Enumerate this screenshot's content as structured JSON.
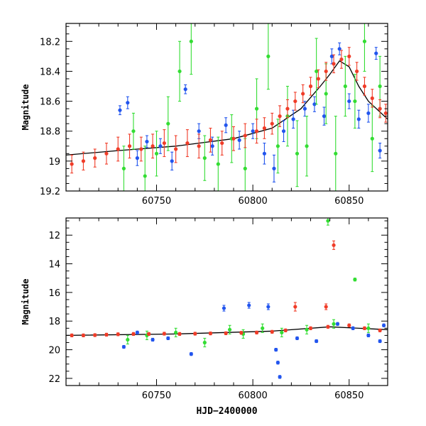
{
  "chart_data": [
    {
      "type": "scatter",
      "panel": "top",
      "ylabel": "Magnitude",
      "xlabel": "",
      "xlim": [
        60703,
        60870
      ],
      "ylim": [
        19.2,
        18.08
      ],
      "y_inverted": true,
      "xticks": [
        60750,
        60800,
        60850
      ],
      "yticks": [
        18.2,
        18.4,
        18.6,
        18.8,
        19,
        19.2
      ],
      "ytick_labels": [
        "18.2",
        "18.4",
        "18.6",
        "18.8",
        "19",
        "19.2"
      ],
      "trend": {
        "color": "#000000",
        "x": [
          60703,
          60730,
          60760,
          60790,
          60810,
          60825,
          60835,
          60840,
          60845,
          60850,
          60855,
          60860,
          60870
        ],
        "y": [
          18.96,
          18.93,
          18.9,
          18.85,
          18.78,
          18.65,
          18.5,
          18.42,
          18.33,
          18.37,
          18.5,
          18.6,
          18.72
        ]
      },
      "series": [
        {
          "color": "#2255ee",
          "x": [
            60731,
            60735,
            60740,
            60745,
            60752,
            60758,
            60765,
            60772,
            60779,
            60786,
            60793,
            60800,
            60806,
            60811,
            60816,
            60821,
            60827,
            60832,
            60837,
            60841,
            60845,
            60850,
            60855,
            60860,
            60864,
            60866
          ],
          "y": [
            18.66,
            18.61,
            18.98,
            18.87,
            18.9,
            19.0,
            18.52,
            18.8,
            18.9,
            18.76,
            18.86,
            18.8,
            18.95,
            19.05,
            18.8,
            18.72,
            18.65,
            18.62,
            18.7,
            18.3,
            18.25,
            18.6,
            18.72,
            18.68,
            18.28,
            18.93
          ],
          "err": [
            0.03,
            0.04,
            0.05,
            0.04,
            0.05,
            0.06,
            0.03,
            0.05,
            0.06,
            0.05,
            0.06,
            0.05,
            0.07,
            0.09,
            0.07,
            0.06,
            0.05,
            0.05,
            0.06,
            0.05,
            0.04,
            0.05,
            0.06,
            0.06,
            0.04,
            0.05
          ]
        },
        {
          "color": "#33dd33",
          "x": [
            60733,
            60738,
            60744,
            60750,
            60756,
            60762,
            60768,
            60775,
            60782,
            60789,
            60796,
            60802,
            60808,
            60813,
            60818,
            60823,
            60828,
            60833,
            60838,
            60843,
            60848,
            60853,
            60858,
            60862,
            60866
          ],
          "y": [
            19.05,
            18.8,
            19.1,
            18.95,
            18.75,
            18.4,
            18.2,
            18.98,
            19.02,
            18.85,
            19.05,
            18.65,
            18.3,
            18.9,
            18.7,
            18.95,
            18.9,
            18.4,
            18.55,
            18.95,
            18.5,
            18.6,
            18.2,
            18.85,
            18.5
          ],
          "err": [
            0.15,
            0.12,
            0.2,
            0.15,
            0.18,
            0.2,
            0.22,
            0.15,
            0.18,
            0.16,
            0.2,
            0.2,
            0.22,
            0.18,
            0.2,
            0.22,
            0.2,
            0.22,
            0.2,
            0.25,
            0.2,
            0.18,
            0.2,
            0.22,
            0.2
          ]
        },
        {
          "color": "#f03c28",
          "x": [
            60706,
            60712,
            60718,
            60724,
            60730,
            60736,
            60742,
            60748,
            60754,
            60760,
            60766,
            60772,
            60778,
            60784,
            60790,
            60796,
            60802,
            60806,
            60810,
            60814,
            60818,
            60822,
            60826,
            60830,
            60834,
            60838,
            60842,
            60846,
            60850,
            60854,
            60858,
            60862,
            60866,
            60869
          ],
          "y": [
            19.02,
            19.0,
            18.98,
            18.95,
            18.92,
            18.9,
            18.92,
            18.9,
            18.88,
            18.92,
            18.88,
            18.9,
            18.86,
            18.88,
            18.85,
            18.83,
            18.8,
            18.78,
            18.75,
            18.7,
            18.65,
            18.6,
            18.55,
            18.5,
            18.45,
            18.4,
            18.35,
            18.32,
            18.3,
            18.4,
            18.5,
            18.58,
            18.65,
            18.68
          ],
          "err": [
            0.06,
            0.06,
            0.06,
            0.07,
            0.08,
            0.08,
            0.08,
            0.08,
            0.09,
            0.09,
            0.09,
            0.08,
            0.08,
            0.08,
            0.08,
            0.08,
            0.08,
            0.07,
            0.07,
            0.07,
            0.06,
            0.06,
            0.06,
            0.06,
            0.06,
            0.06,
            0.06,
            0.06,
            0.06,
            0.06,
            0.06,
            0.06,
            0.06,
            0.06
          ]
        }
      ]
    },
    {
      "type": "scatter",
      "panel": "bottom",
      "ylabel": "Magnitude",
      "xlabel": "HJD−2400000",
      "xlim": [
        60703,
        60870
      ],
      "ylim": [
        22.5,
        10.8
      ],
      "y_inverted": true,
      "xticks": [
        60750,
        60800,
        60850
      ],
      "yticks": [
        12,
        14,
        16,
        18,
        20,
        22
      ],
      "ytick_labels": [
        "12",
        "14",
        "16",
        "18",
        "20",
        "22"
      ],
      "trend": {
        "color": "#000000",
        "x": [
          60703,
          60760,
          60810,
          60840,
          60870
        ],
        "y": [
          19.0,
          18.9,
          18.7,
          18.4,
          18.6
        ]
      },
      "series": [
        {
          "color": "#2255ee",
          "x": [
            60733,
            60740,
            60748,
            60756,
            60768,
            60785,
            60798,
            60808,
            60812,
            60813,
            60814,
            60823,
            60833,
            60844,
            60852,
            60860,
            60866,
            60868
          ],
          "y": [
            19.8,
            18.8,
            19.3,
            19.2,
            20.3,
            17.1,
            16.9,
            17.0,
            20.0,
            20.9,
            21.9,
            19.2,
            19.4,
            18.2,
            18.5,
            19.0,
            19.4,
            18.3
          ],
          "err": [
            0.1,
            0.1,
            0.1,
            0.1,
            0.1,
            0.2,
            0.2,
            0.2,
            0.1,
            0.1,
            0.1,
            0.1,
            0.1,
            0.1,
            0.1,
            0.1,
            0.1,
            0.1
          ]
        },
        {
          "color": "#33dd33",
          "x": [
            60735,
            60745,
            60760,
            60775,
            60788,
            60795,
            60805,
            60815,
            60828,
            60839,
            60842,
            60853,
            60860
          ],
          "y": [
            19.3,
            19.0,
            18.8,
            19.5,
            18.6,
            18.9,
            18.5,
            18.8,
            18.6,
            11.0,
            18.2,
            15.1,
            18.5
          ],
          "err": [
            0.3,
            0.3,
            0.3,
            0.3,
            0.3,
            0.3,
            0.3,
            0.3,
            0.3,
            0.3,
            0.3,
            0.1,
            0.3
          ]
        },
        {
          "color": "#f03c28",
          "x": [
            60706,
            60712,
            60718,
            60724,
            60730,
            60738,
            60746,
            60754,
            60762,
            60770,
            60778,
            60786,
            60794,
            60802,
            60810,
            60817,
            60822,
            60830,
            60838,
            60839,
            60842,
            60850,
            60858,
            60866
          ],
          "y": [
            19.0,
            19.0,
            18.98,
            18.95,
            18.92,
            18.9,
            18.9,
            18.88,
            18.9,
            18.88,
            18.86,
            18.85,
            18.82,
            18.8,
            18.75,
            18.65,
            17.0,
            18.5,
            17.0,
            18.4,
            12.7,
            18.3,
            18.5,
            18.65
          ],
          "err": [
            0.1,
            0.1,
            0.1,
            0.1,
            0.1,
            0.1,
            0.1,
            0.1,
            0.1,
            0.1,
            0.1,
            0.1,
            0.1,
            0.1,
            0.1,
            0.1,
            0.3,
            0.1,
            0.2,
            0.1,
            0.3,
            0.1,
            0.1,
            0.1
          ]
        }
      ]
    }
  ]
}
